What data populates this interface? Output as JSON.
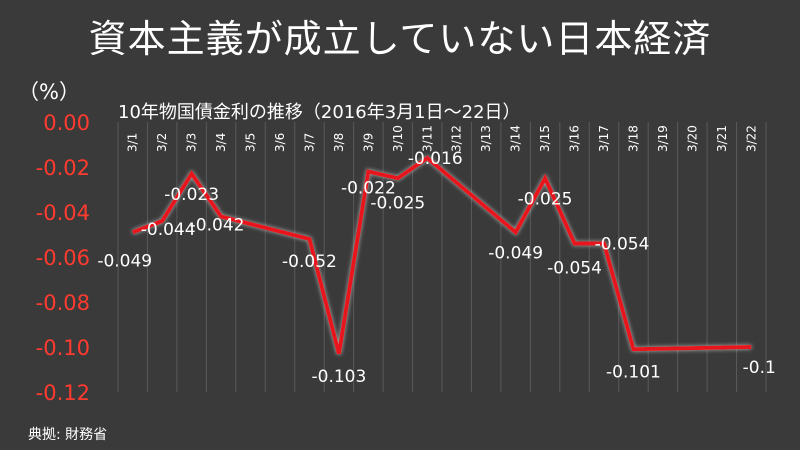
{
  "title": "資本主義が成立していない日本経済",
  "unit_label": "（%）",
  "source": "典拠: 財務省",
  "colors": {
    "background": "#3a3a3a",
    "line": "#e8161c",
    "y_tick_label": "#ff3b30",
    "grid": "#5a5a5a",
    "text": "#ffffff"
  },
  "chart_data": {
    "type": "line",
    "title": "10年物国債金利の推移（2016年3月1日～22日）",
    "xlabel": "",
    "ylabel": "（%）",
    "x_position": "top",
    "categories": [
      "3/1",
      "3/2",
      "3/3",
      "3/4",
      "3/5",
      "3/6",
      "3/7",
      "3/8",
      "3/9",
      "3/10",
      "3/11",
      "3/12",
      "3/13",
      "3/14",
      "3/15",
      "3/16",
      "3/17",
      "3/18",
      "3/19",
      "3/20",
      "3/21",
      "3/22"
    ],
    "yticks": [
      "0.00",
      "-0.02",
      "-0.04",
      "-0.06",
      "-0.08",
      "-0.10",
      "-0.12"
    ],
    "ylim": [
      -0.12,
      0
    ],
    "grid": "vertical",
    "series": [
      {
        "points": [
          {
            "x": "3/1",
            "y": -0.049,
            "label": "-0.049"
          },
          {
            "x": "3/2",
            "y": -0.044,
            "label": "-0.044"
          },
          {
            "x": "3/3",
            "y": -0.023,
            "label": "-0.023"
          },
          {
            "x": "3/4",
            "y": -0.042,
            "label": "-0.042"
          },
          {
            "x": "3/7",
            "y": -0.052,
            "label": "-0.052"
          },
          {
            "x": "3/8",
            "y": -0.103,
            "label": "-0.103"
          },
          {
            "x": "3/9",
            "y": -0.022,
            "label": "-0.022"
          },
          {
            "x": "3/10",
            "y": -0.025,
            "label": "-0.025"
          },
          {
            "x": "3/11",
            "y": -0.016,
            "label": "-0.016"
          },
          {
            "x": "3/14",
            "y": -0.049,
            "label": "-0.049"
          },
          {
            "x": "3/15",
            "y": -0.025,
            "label": "-0.025"
          },
          {
            "x": "3/16",
            "y": -0.054,
            "label": "-0.054"
          },
          {
            "x": "3/17",
            "y": -0.054,
            "label": "-0.054"
          },
          {
            "x": "3/18",
            "y": -0.101,
            "label": "-0.101"
          },
          {
            "x": "3/22",
            "y": -0.1,
            "label": "-0.1"
          }
        ]
      }
    ]
  }
}
